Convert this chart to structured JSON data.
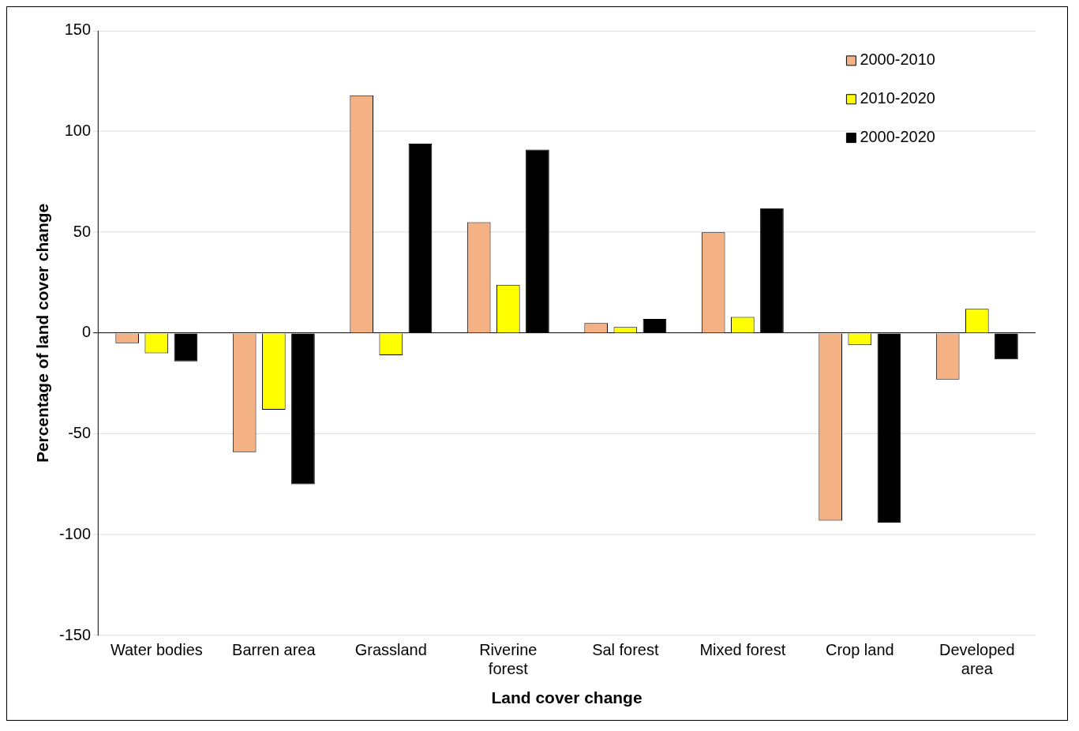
{
  "chart_data": {
    "type": "bar",
    "xlabel": "Land cover change",
    "ylabel": "Percentage of land cover change",
    "categories": [
      "Water bodies",
      "Barren area",
      "Grassland",
      "Riverine forest",
      "Sal forest",
      "Mixed forest",
      "Crop land",
      "Developed area"
    ],
    "series": [
      {
        "name": "2000-2010",
        "color": "#f4b183",
        "values": [
          -5,
          -59,
          118,
          55,
          5,
          50,
          -93,
          -23
        ]
      },
      {
        "name": "2010-2020",
        "color": "#ffff00",
        "values": [
          -10,
          -38,
          -11,
          24,
          3,
          8,
          -6,
          12
        ]
      },
      {
        "name": "2000-2020",
        "color": "#000000",
        "values": [
          -14,
          -75,
          94,
          91,
          7,
          62,
          -94,
          -13
        ]
      }
    ],
    "ylim": [
      -150,
      150
    ],
    "yticks": [
      -150,
      -100,
      -50,
      0,
      50,
      100,
      150
    ],
    "grid": "y",
    "legend": "top right"
  }
}
